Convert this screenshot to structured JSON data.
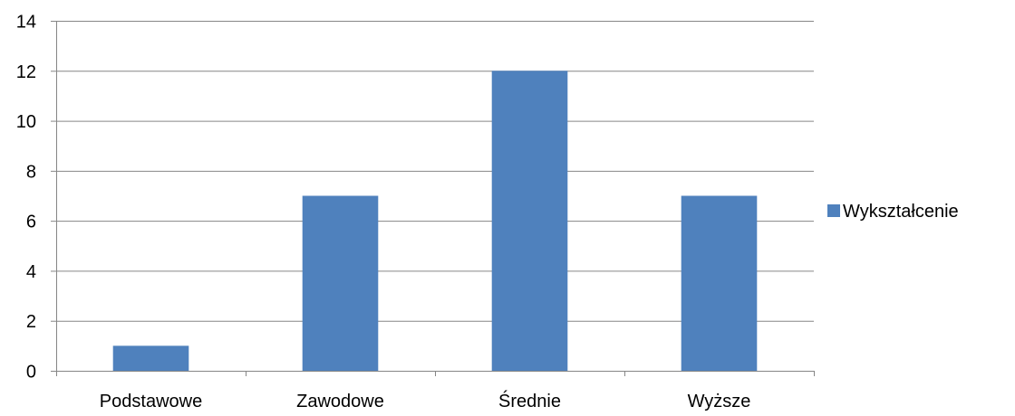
{
  "chart_data": {
    "type": "bar",
    "categories": [
      "Podstawowe",
      "Zawodowe",
      "Średnie",
      "Wyższe"
    ],
    "series": [
      {
        "name": "Wykształcenie",
        "values": [
          1,
          7,
          12,
          7
        ],
        "color": "#4f81bd"
      }
    ],
    "ylim": [
      0,
      14
    ],
    "y_ticks": [
      0,
      2,
      4,
      6,
      8,
      10,
      12,
      14
    ],
    "grid": true,
    "legend_position": "right",
    "colors": {
      "bar": "#4f81bd",
      "grid": "#868686",
      "axis": "#868686",
      "text": "#000000"
    }
  }
}
